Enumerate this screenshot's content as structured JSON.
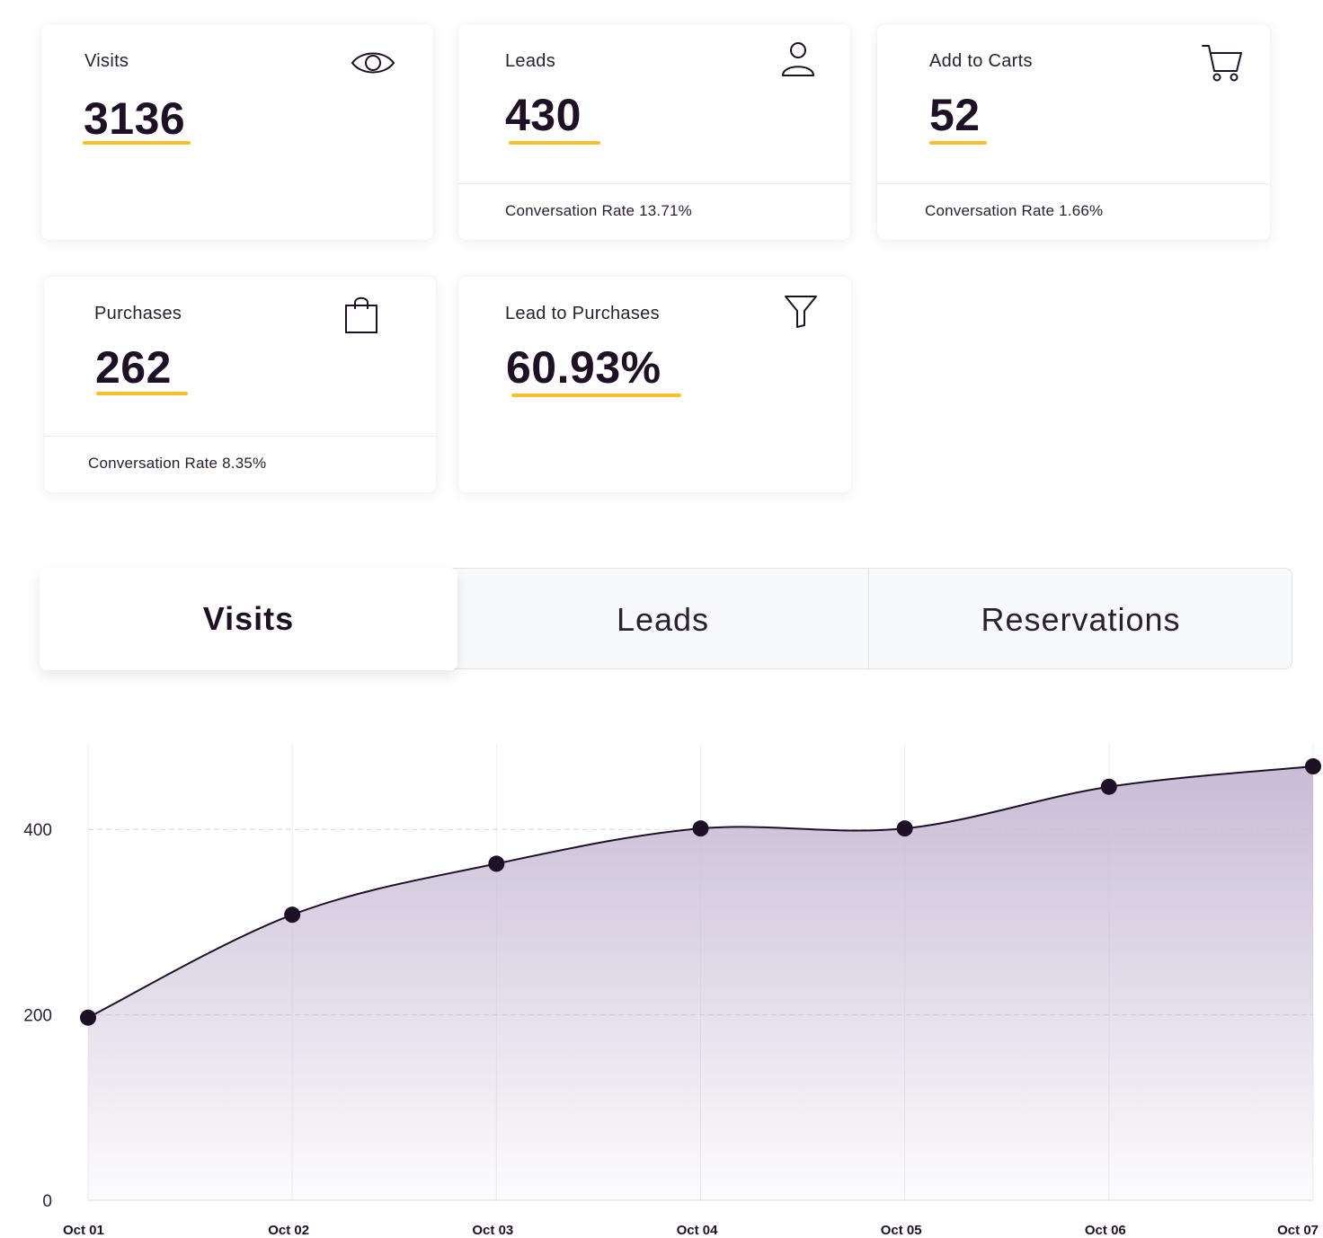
{
  "cards": {
    "visits": {
      "label": "Visits",
      "value": "3136"
    },
    "leads": {
      "label": "Leads",
      "value": "430",
      "footer": "Conversation Rate 13.71%"
    },
    "add_to_carts": {
      "label": "Add to Carts",
      "value": "52",
      "footer": "Conversation Rate 1.66%"
    },
    "purchases": {
      "label": "Purchases",
      "value": "262",
      "footer": "Conversation Rate 8.35%"
    },
    "lead_to_purchases": {
      "label": "Lead to Purchases",
      "value": "60.93%"
    }
  },
  "icons": {
    "visits": "eye-icon",
    "leads": "user-icon",
    "add_to_carts": "cart-icon",
    "purchases": "shopping-bag-icon",
    "lead_to_purchases": "funnel-icon"
  },
  "colors": {
    "accent_underline": "#f7c02b",
    "line": "#1f1125",
    "area_fill": "#c8bcd6"
  },
  "tabs": [
    {
      "label": "Visits",
      "active": true
    },
    {
      "label": "Leads",
      "active": false
    },
    {
      "label": "Reservations",
      "active": false
    }
  ],
  "chart_data": {
    "type": "area",
    "categories": [
      "Oct 01",
      "Oct 02",
      "Oct 03",
      "Oct 04",
      "Oct 05",
      "Oct 06",
      "Oct 07"
    ],
    "values": [
      197,
      308,
      363,
      401,
      401,
      446,
      468
    ],
    "yticks": [
      0,
      200,
      400
    ],
    "ylim": [
      0,
      500
    ],
    "grid": true,
    "title": "",
    "xlabel": "",
    "ylabel": ""
  }
}
